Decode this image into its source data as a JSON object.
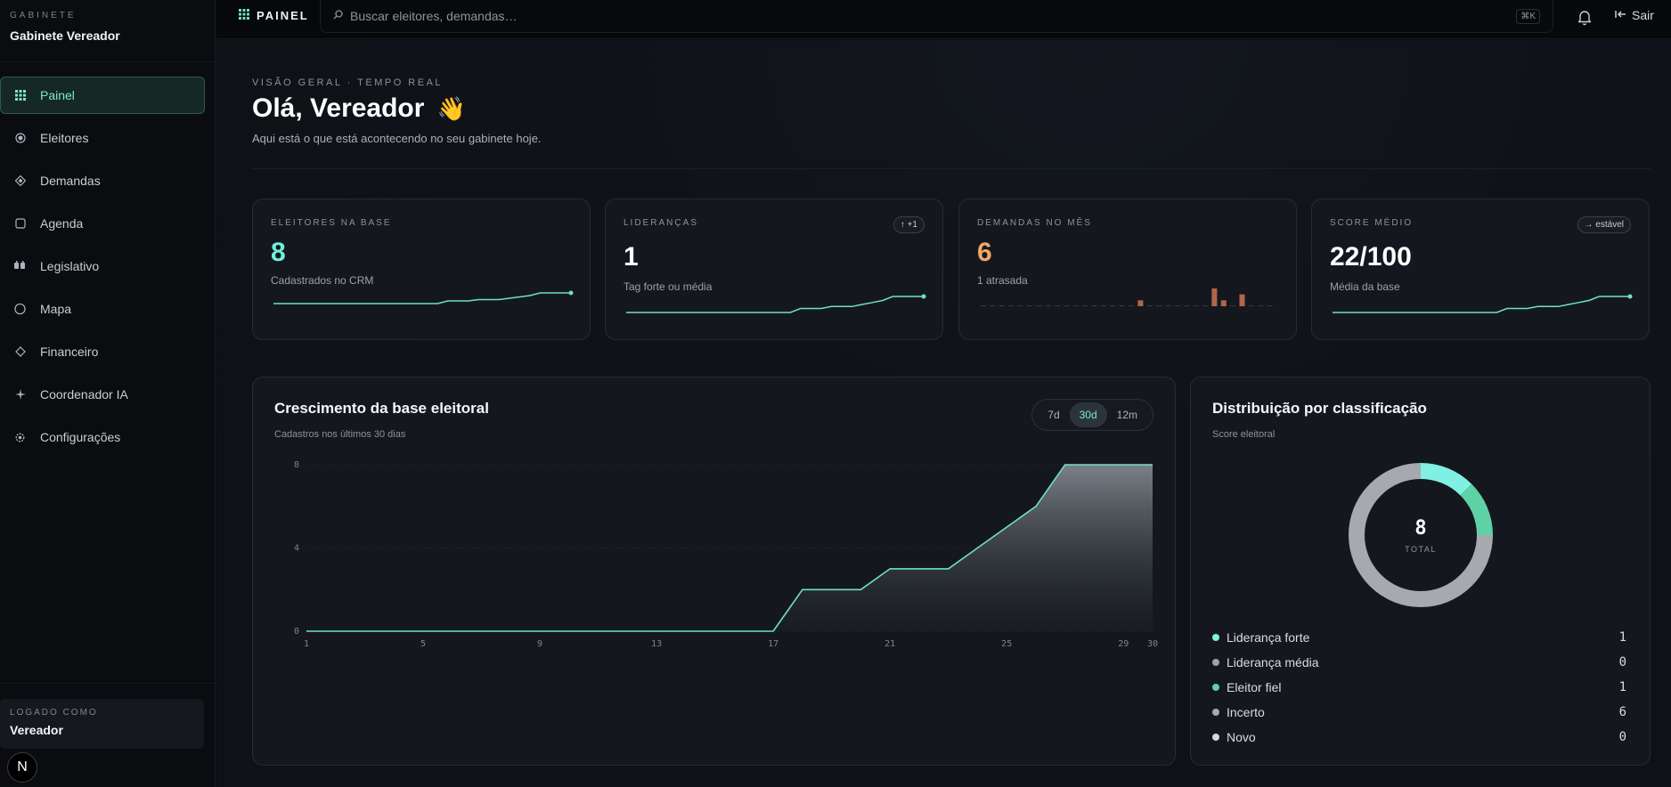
{
  "sidebar": {
    "kicker": "GABINETE",
    "name": "Gabinete Vereador",
    "items": [
      {
        "label": "Painel",
        "icon": "grid-icon"
      },
      {
        "label": "Eleitores",
        "icon": "target-icon"
      },
      {
        "label": "Demandas",
        "icon": "diamond-icon"
      },
      {
        "label": "Agenda",
        "icon": "calendar-icon"
      },
      {
        "label": "Legislativo",
        "icon": "scales-icon"
      },
      {
        "label": "Mapa",
        "icon": "circle-icon"
      },
      {
        "label": "Financeiro",
        "icon": "diamond-outline-icon"
      },
      {
        "label": "Coordenador IA",
        "icon": "sparkle-icon"
      },
      {
        "label": "Configurações",
        "icon": "gear-icon"
      }
    ],
    "active_index": 0,
    "logged_kicker": "LOGADO COMO",
    "logged_name": "Vereador",
    "badge_letter": "N"
  },
  "topbar": {
    "title": "PAINEL",
    "search_placeholder": "Buscar eleitores, demandas…",
    "shortcut": "⌘K",
    "logout_label": "Sair"
  },
  "header": {
    "kicker": "VISÃO GERAL · TEMPO REAL",
    "greeting": "Olá, Vereador",
    "wave": "👋",
    "subtitle": "Aqui está o que está acontecendo no seu gabinete hoje."
  },
  "kpis": [
    {
      "label": "ELEITORES NA BASE",
      "value": "8",
      "desc": "Cadastrados no CRM",
      "badge": "",
      "color": "#6ff0dc",
      "spark": "line"
    },
    {
      "label": "LIDERANÇAS",
      "value": "1",
      "desc": "Tag forte ou média",
      "badge": "↑ +1",
      "color": "#ffffff",
      "spark": "line"
    },
    {
      "label": "DEMANDAS NO MÊS",
      "value": "6",
      "desc": "1 atrasada",
      "badge": "",
      "color": "#f2a865",
      "spark": "bars"
    },
    {
      "label": "SCORE MÉDIO",
      "value": "22/100",
      "desc": "Média da base",
      "badge": "→ estável",
      "color": "#ffffff",
      "spark": "line"
    }
  ],
  "growth": {
    "title": "Crescimento da base eleitoral",
    "subtitle": "Cadastros nos últimos 30 dias",
    "ranges": [
      "7d",
      "30d",
      "12m"
    ],
    "active_range": "30d"
  },
  "distribution": {
    "title": "Distribuição por classificação",
    "subtitle": "Score eleitoral",
    "total": "8",
    "total_label": "TOTAL",
    "items": [
      {
        "label": "Liderança forte",
        "value": "1",
        "color": "#7ff0e1"
      },
      {
        "label": "Liderança média",
        "value": "0",
        "color": "#9ea3ab"
      },
      {
        "label": "Eleitor fiel",
        "value": "1",
        "color": "#5fd1a6"
      },
      {
        "label": "Incerto",
        "value": "6",
        "color": "#a7a9b0"
      },
      {
        "label": "Novo",
        "value": "0",
        "color": "#d6d8dc"
      }
    ]
  },
  "chart_data": [
    {
      "type": "area",
      "title": "Crescimento da base eleitoral",
      "subtitle": "Cadastros nos últimos 30 dias",
      "x_ticks": [
        1,
        5,
        9,
        13,
        17,
        21,
        25,
        29,
        30
      ],
      "y_ticks": [
        0,
        4,
        8
      ],
      "ylim": [
        0,
        8
      ],
      "xlim": [
        1,
        30
      ],
      "x": [
        1,
        2,
        3,
        4,
        5,
        6,
        7,
        8,
        9,
        10,
        11,
        12,
        13,
        14,
        15,
        16,
        17,
        18,
        19,
        20,
        21,
        22,
        23,
        24,
        25,
        26,
        27,
        28,
        29,
        30
      ],
      "values": [
        0,
        0,
        0,
        0,
        0,
        0,
        0,
        0,
        0,
        0,
        0,
        0,
        0,
        0,
        0,
        0,
        0,
        2,
        2,
        2,
        3,
        3,
        3,
        4,
        5,
        6,
        8,
        8,
        8,
        8
      ],
      "grid": true,
      "line_color": "#6fe0c8"
    },
    {
      "type": "pie",
      "title": "Distribuição por classificação",
      "categories": [
        "Liderança forte",
        "Liderança média",
        "Eleitor fiel",
        "Incerto",
        "Novo"
      ],
      "values": [
        1,
        0,
        1,
        6,
        0
      ],
      "total": 8
    },
    {
      "type": "bar",
      "title": "",
      "values": [
        0,
        0,
        0,
        0,
        0,
        0,
        0,
        0,
        0,
        0,
        0,
        0,
        0,
        0,
        0,
        0,
        0,
        1,
        0,
        0,
        0,
        0,
        0,
        0,
        0,
        3,
        1,
        0,
        2,
        0,
        0,
        0
      ]
    }
  ]
}
